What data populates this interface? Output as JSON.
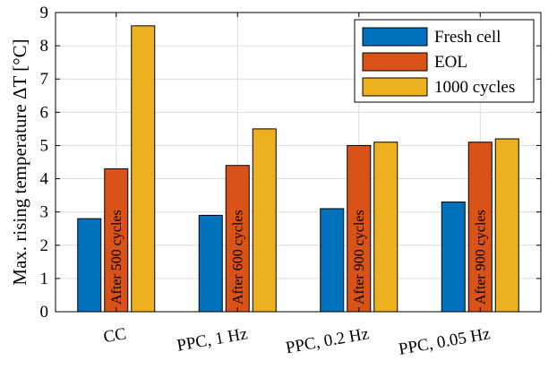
{
  "chart_data": {
    "type": "bar",
    "title": "",
    "xlabel": "",
    "ylabel": "Max. rising temperature ΔT [°C]",
    "ylim": [
      0,
      9
    ],
    "yticks": [
      0,
      1,
      2,
      3,
      4,
      5,
      6,
      7,
      8,
      9
    ],
    "grid": true,
    "legend_position": "top-right",
    "categories": [
      "CC",
      "PPC, 1 Hz",
      "PPC, 0.2 Hz",
      "PPC, 0.05 Hz"
    ],
    "series": [
      {
        "name": "Fresh cell",
        "color": "#0072BD",
        "values": [
          2.8,
          2.9,
          3.1,
          3.3
        ]
      },
      {
        "name": "EOL",
        "color": "#D95319",
        "values": [
          4.3,
          4.4,
          5.0,
          5.1
        ]
      },
      {
        "name": "1000 cycles",
        "color": "#EDB120",
        "values": [
          8.6,
          5.5,
          5.1,
          5.2
        ]
      }
    ],
    "annotations": [
      "After 500 cycles",
      "After 600 cycles",
      "After 900 cycles",
      "After 900 cycles"
    ]
  }
}
